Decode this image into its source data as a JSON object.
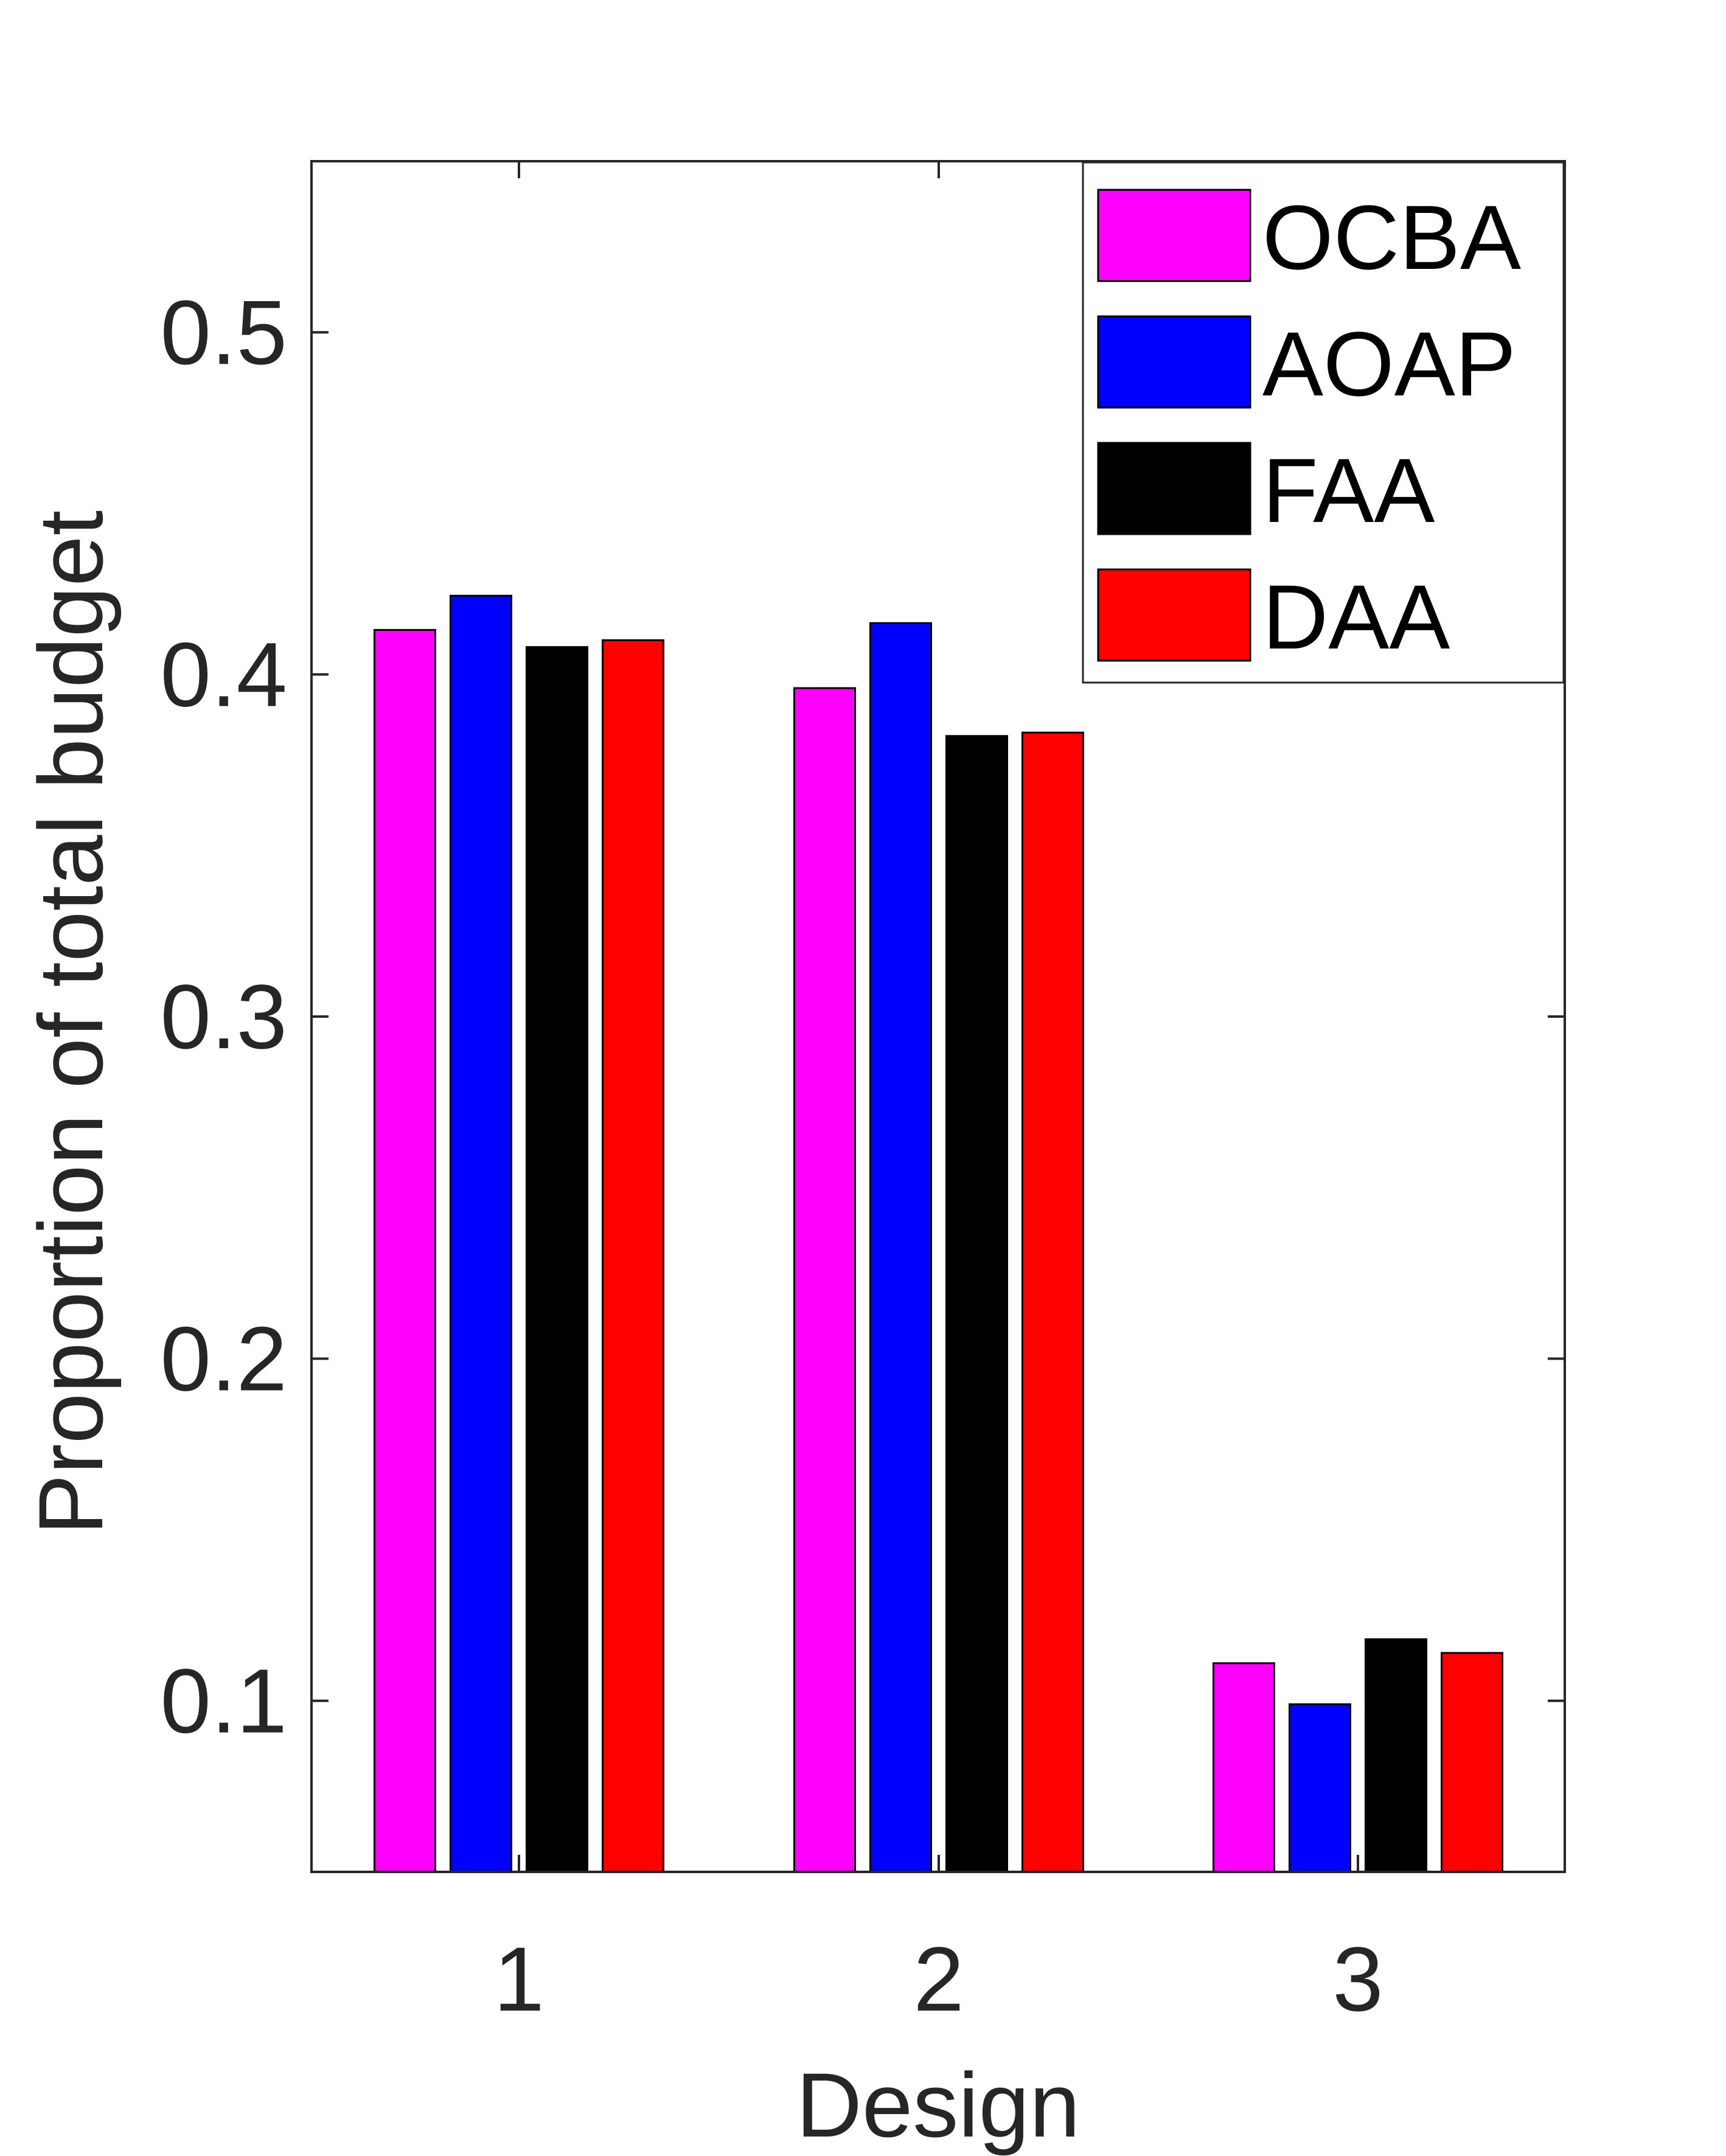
{
  "chart_data": {
    "type": "bar",
    "title": "",
    "xlabel": "Design",
    "ylabel": "Proportion of total budget",
    "categories": [
      "1",
      "2",
      "3"
    ],
    "ylim": [
      0.05,
      0.55
    ],
    "yticks": [
      0.1,
      0.2,
      0.3,
      0.4,
      0.5
    ],
    "ytick_labels": [
      "0.1",
      "0.2",
      "0.3",
      "0.4",
      "0.5"
    ],
    "grid": false,
    "legend_position": "top-right",
    "series": [
      {
        "name": "OCBA",
        "color": "#ff00ff",
        "values": [
          0.413,
          0.396,
          0.111
        ]
      },
      {
        "name": "AOAP",
        "color": "#0000ff",
        "values": [
          0.423,
          0.415,
          0.099
        ]
      },
      {
        "name": "FAA",
        "color": "#000000",
        "values": [
          0.408,
          0.382,
          0.118
        ]
      },
      {
        "name": "DAA",
        "color": "#ff0000",
        "values": [
          0.41,
          0.383,
          0.114
        ]
      }
    ]
  }
}
